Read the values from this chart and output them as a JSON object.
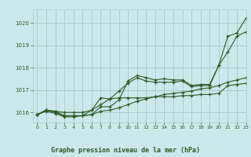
{
  "title": "Graphe pression niveau de la mer (hPa)",
  "bg_color": "#cce8ea",
  "grid_color": "#aaccce",
  "line_color": "#2d5a27",
  "xlim": [
    -0.5,
    23
  ],
  "ylim": [
    1015.55,
    1020.6
  ],
  "yticks": [
    1016,
    1017,
    1018,
    1019,
    1020
  ],
  "xticks": [
    0,
    1,
    2,
    3,
    4,
    5,
    6,
    7,
    8,
    9,
    10,
    11,
    12,
    13,
    14,
    15,
    16,
    17,
    18,
    19,
    20,
    21,
    22,
    23
  ],
  "series": [
    [
      1015.9,
      1016.1,
      1016.05,
      1015.85,
      1015.85,
      1015.85,
      1015.9,
      1016.25,
      1016.25,
      1016.55,
      1017.4,
      1017.65,
      1017.55,
      1017.45,
      1017.5,
      1017.45,
      1017.45,
      1017.2,
      1017.25,
      1017.25,
      1018.1,
      1018.7,
      1019.4,
      1019.6
    ],
    [
      1015.9,
      1016.1,
      1016.05,
      1016.0,
      1016.0,
      1016.0,
      1016.1,
      1016.35,
      1016.6,
      1016.95,
      1017.3,
      1017.55,
      1017.4,
      1017.35,
      1017.35,
      1017.35,
      1017.4,
      1017.15,
      1017.2,
      1017.2,
      1018.1,
      1019.4,
      1019.55,
      1020.2
    ],
    [
      1015.9,
      1016.1,
      1016.0,
      1015.85,
      1015.85,
      1015.85,
      1016.1,
      1016.65,
      1016.6,
      1016.65,
      1016.65,
      1016.65,
      1016.65,
      1016.7,
      1016.7,
      1016.7,
      1016.75,
      1016.75,
      1016.8,
      1016.8,
      1016.85,
      1017.2,
      1017.25,
      1017.3
    ],
    [
      1015.9,
      1016.05,
      1015.95,
      1015.8,
      1015.8,
      1015.85,
      1015.9,
      1016.05,
      1016.1,
      1016.2,
      1016.35,
      1016.5,
      1016.6,
      1016.7,
      1016.8,
      1016.85,
      1016.9,
      1016.95,
      1017.05,
      1017.1,
      1017.2,
      1017.35,
      1017.45,
      1017.55
    ]
  ]
}
